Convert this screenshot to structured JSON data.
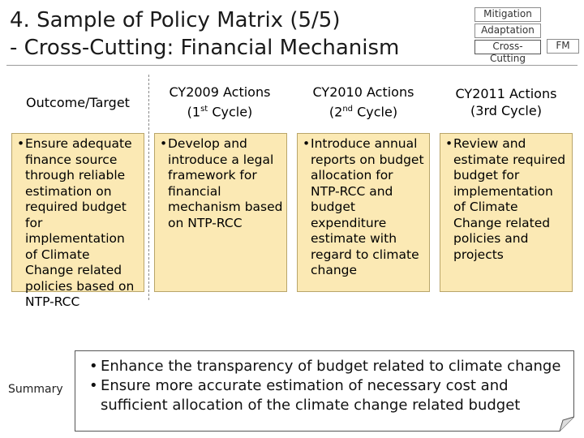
{
  "slide": {
    "title_line1": "4. Sample of Policy Matrix (5/5)",
    "title_line2": "- Cross-Cutting: Financial Mechanism"
  },
  "tags": {
    "mitigation": "Mitigation",
    "adaptation": "Adaptation",
    "cross_cutting": "Cross-Cutting",
    "fm": "FM"
  },
  "headers": {
    "outcome": "Outcome/Target",
    "cy2009_line1": "CY2009 Actions",
    "cy2009_line2_pre": "(1",
    "cy2009_line2_sup": "st",
    "cy2009_line2_post": " Cycle)",
    "cy2010_line1": "CY2010 Actions",
    "cy2010_line2_pre": "(2",
    "cy2010_line2_sup": "nd",
    "cy2010_line2_post": " Cycle)",
    "cy2011_line1": "CY2011 Actions",
    "cy2011_line2": "(3rd Cycle)"
  },
  "cells": {
    "outcome": "Ensure adequate finance source through reliable estimation on required budget for implementation of Climate Change related policies based on NTP-RCC",
    "cy2009": "Develop and introduce a legal framework for financial mechanism based on NTP-RCC",
    "cy2010": "Introduce annual reports on budget allocation for NTP-RCC and budget expenditure estimate with regard to climate change",
    "cy2011": "Review and estimate required budget for implementation of Climate Change related policies and projects"
  },
  "bullet_char": "•",
  "summary": {
    "label": "Summary",
    "items": [
      "Enhance the transparency of budget related to climate change",
      "Ensure more accurate estimation of necessary cost and sufficient allocation of the climate change related budget"
    ]
  }
}
